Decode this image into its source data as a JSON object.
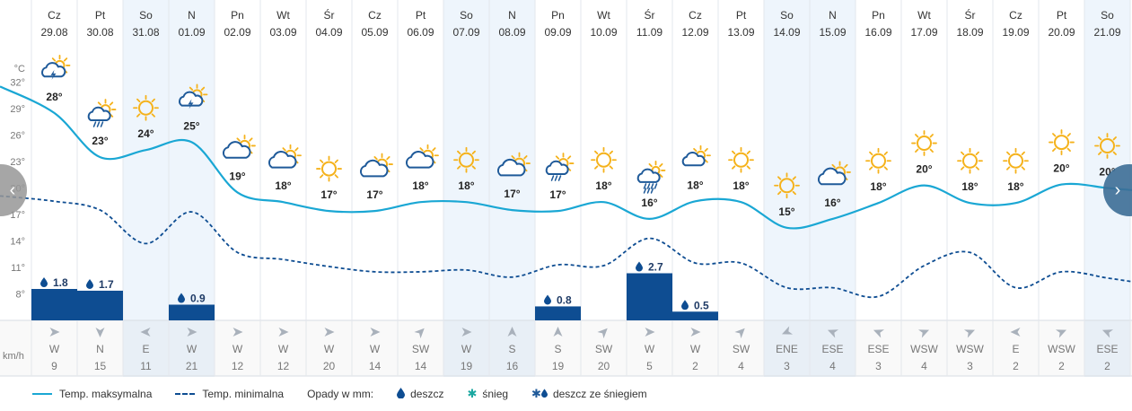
{
  "chart_data": {
    "type": "line",
    "days": [
      {
        "dow": "Cz",
        "date": "29.08",
        "icon": "thunderstorm-icon",
        "temp": "28°",
        "rain": "1.8",
        "wind_dir": "W",
        "wind_speed": "9",
        "wind_deg": 270,
        "weekend": false
      },
      {
        "dow": "Pt",
        "date": "30.08",
        "icon": "sun-rain-icon",
        "temp": "23°",
        "rain": "1.7",
        "wind_dir": "N",
        "wind_speed": "15",
        "wind_deg": 0,
        "weekend": false
      },
      {
        "dow": "So",
        "date": "31.08",
        "icon": "sun-icon",
        "temp": "24°",
        "rain": "",
        "wind_dir": "E",
        "wind_speed": "11",
        "wind_deg": 90,
        "weekend": true
      },
      {
        "dow": "N",
        "date": "01.09",
        "icon": "thunderstorm-icon",
        "temp": "25°",
        "rain": "0.9",
        "wind_dir": "W",
        "wind_speed": "21",
        "wind_deg": 270,
        "weekend": true
      },
      {
        "dow": "Pn",
        "date": "02.09",
        "icon": "cloud-sun-icon",
        "temp": "19°",
        "rain": "",
        "wind_dir": "W",
        "wind_speed": "12",
        "wind_deg": 270,
        "weekend": false
      },
      {
        "dow": "Wt",
        "date": "03.09",
        "icon": "cloud-sun-icon",
        "temp": "18°",
        "rain": "",
        "wind_dir": "W",
        "wind_speed": "12",
        "wind_deg": 270,
        "weekend": false
      },
      {
        "dow": "Śr",
        "date": "04.09",
        "icon": "sun-icon",
        "temp": "17°",
        "rain": "",
        "wind_dir": "W",
        "wind_speed": "20",
        "wind_deg": 270,
        "weekend": false
      },
      {
        "dow": "Cz",
        "date": "05.09",
        "icon": "cloud-sun-icon",
        "temp": "17°",
        "rain": "",
        "wind_dir": "W",
        "wind_speed": "14",
        "wind_deg": 270,
        "weekend": false
      },
      {
        "dow": "Pt",
        "date": "06.09",
        "icon": "cloud-sun-icon",
        "temp": "18°",
        "rain": "",
        "wind_dir": "SW",
        "wind_speed": "14",
        "wind_deg": 225,
        "weekend": false
      },
      {
        "dow": "So",
        "date": "07.09",
        "icon": "sun-icon",
        "temp": "18°",
        "rain": "",
        "wind_dir": "W",
        "wind_speed": "19",
        "wind_deg": 270,
        "weekend": true
      },
      {
        "dow": "N",
        "date": "08.09",
        "icon": "cloud-sun-icon",
        "temp": "17°",
        "rain": "",
        "wind_dir": "S",
        "wind_speed": "16",
        "wind_deg": 180,
        "weekend": true
      },
      {
        "dow": "Pn",
        "date": "09.09",
        "icon": "sun-rain-icon",
        "temp": "17°",
        "rain": "0.8",
        "wind_dir": "S",
        "wind_speed": "19",
        "wind_deg": 180,
        "weekend": false
      },
      {
        "dow": "Wt",
        "date": "10.09",
        "icon": "sun-icon",
        "temp": "18°",
        "rain": "",
        "wind_dir": "SW",
        "wind_speed": "20",
        "wind_deg": 225,
        "weekend": false
      },
      {
        "dow": "Śr",
        "date": "11.09",
        "icon": "heavy-rain-icon",
        "temp": "16°",
        "rain": "2.7",
        "wind_dir": "W",
        "wind_speed": "5",
        "wind_deg": 270,
        "weekend": false
      },
      {
        "dow": "Cz",
        "date": "12.09",
        "icon": "cloud-sun-small-icon",
        "temp": "18°",
        "rain": "0.5",
        "wind_dir": "W",
        "wind_speed": "2",
        "wind_deg": 270,
        "weekend": false
      },
      {
        "dow": "Pt",
        "date": "13.09",
        "icon": "sun-icon",
        "temp": "18°",
        "rain": "",
        "wind_dir": "SW",
        "wind_speed": "4",
        "wind_deg": 225,
        "weekend": false
      },
      {
        "dow": "So",
        "date": "14.09",
        "icon": "sun-icon",
        "temp": "15°",
        "rain": "",
        "wind_dir": "ENE",
        "wind_speed": "3",
        "wind_deg": 67,
        "weekend": true
      },
      {
        "dow": "N",
        "date": "15.09",
        "icon": "cloud-sun-icon",
        "temp": "16°",
        "rain": "",
        "wind_dir": "ESE",
        "wind_speed": "4",
        "wind_deg": 112,
        "weekend": true
      },
      {
        "dow": "Pn",
        "date": "16.09",
        "icon": "sun-icon",
        "temp": "18°",
        "rain": "",
        "wind_dir": "ESE",
        "wind_speed": "3",
        "wind_deg": 112,
        "weekend": false
      },
      {
        "dow": "Wt",
        "date": "17.09",
        "icon": "sun-icon",
        "temp": "20°",
        "rain": "",
        "wind_dir": "WSW",
        "wind_speed": "4",
        "wind_deg": 247,
        "weekend": false
      },
      {
        "dow": "Śr",
        "date": "18.09",
        "icon": "sun-icon",
        "temp": "18°",
        "rain": "",
        "wind_dir": "WSW",
        "wind_speed": "3",
        "wind_deg": 247,
        "weekend": false
      },
      {
        "dow": "Cz",
        "date": "19.09",
        "icon": "sun-icon",
        "temp": "18°",
        "rain": "",
        "wind_dir": "E",
        "wind_speed": "2",
        "wind_deg": 90,
        "weekend": false
      },
      {
        "dow": "Pt",
        "date": "20.09",
        "icon": "sun-icon",
        "temp": "20°",
        "rain": "",
        "wind_dir": "WSW",
        "wind_speed": "2",
        "wind_deg": 247,
        "weekend": false
      },
      {
        "dow": "So",
        "date": "21.09",
        "icon": "sun-icon",
        "temp": "20°",
        "rain": "",
        "wind_dir": "ESE",
        "wind_speed": "2",
        "wind_deg": 112,
        "weekend": true
      }
    ],
    "series": [
      {
        "name": "Temp. maksymalna",
        "values": [
          28.5,
          23.5,
          24.3,
          25.2,
          19.5,
          18.4,
          17.4,
          17.4,
          18.4,
          18.4,
          17.5,
          17.4,
          18.4,
          16.5,
          18.5,
          18.4,
          15.5,
          16.5,
          18.3,
          20.3,
          18.3,
          18.3,
          20.4,
          20.0
        ]
      },
      {
        "name": "Temp. minimalna",
        "values": [
          18.5,
          17.5,
          13.7,
          17.3,
          12.7,
          11.9,
          11.1,
          10.5,
          10.5,
          10.7,
          9.9,
          11.3,
          11.2,
          14.3,
          11.5,
          11.5,
          8.7,
          8.7,
          7.7,
          11.2,
          12.7,
          8.7,
          10.5,
          9.8
        ]
      }
    ],
    "precip_values": [
      1.8,
      1.7,
      0,
      0.9,
      0,
      0,
      0,
      0,
      0,
      0,
      0,
      0.8,
      0,
      2.7,
      0.5,
      0,
      0,
      0,
      0,
      0,
      0,
      0,
      0,
      0
    ],
    "y_unit": "°C",
    "y_ticks": [
      32,
      29,
      26,
      23,
      20,
      17,
      14,
      11,
      8
    ],
    "ylim": [
      5,
      35
    ],
    "precip_max": 3.0,
    "wind_unit": "km/h",
    "grid": true
  },
  "legend": {
    "max_label": "Temp. maksymalna",
    "min_label": "Temp. minimalna",
    "precip_label": "Opady w mm:",
    "rain_label": "deszcz",
    "snow_label": "śnieg",
    "mix_label": "deszcz ze śniegiem"
  },
  "nav": {
    "prev": "‹",
    "next": "›"
  },
  "colors": {
    "max_line": "#1aa7d4",
    "min_line": "#0e4d92",
    "bar": "#0e4d92",
    "weekend_bg": "#eef5fc",
    "sun": "#f5b21b",
    "cloud": "#1f5a99"
  }
}
